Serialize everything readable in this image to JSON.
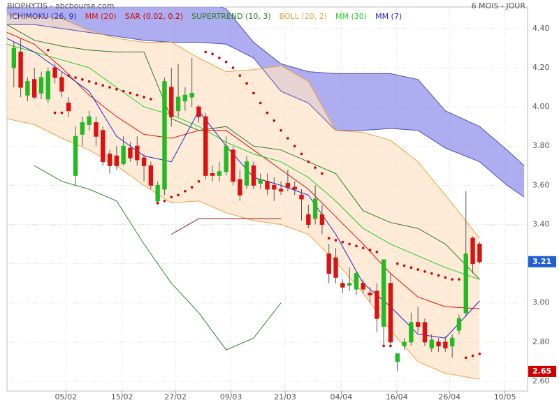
{
  "chart_data": {
    "type": "candlestick",
    "title": "BIOPHYTIS - abcbourse.com",
    "subtitle": "6 MOIS - JOUR",
    "legend": [
      {
        "name": "ICHIMOKU (26, 9)",
        "color": "#3030a0"
      },
      {
        "name": "MM (20)",
        "color": "#dd1111"
      },
      {
        "name": "SAR (0.02, 0.2)",
        "color": "#cc0000"
      },
      {
        "name": "SUPERTREND (10, 3)",
        "color": "#2a7a2a"
      },
      {
        "name": "BOLL (20, 2)",
        "color": "#f0a040"
      },
      {
        "name": "MM (30)",
        "color": "#22cc22"
      },
      {
        "name": "MM (7)",
        "color": "#2222cc"
      }
    ],
    "up_color": "#22bb22",
    "down_color": "#dd1111",
    "grid": true,
    "xlim": [
      -1,
      75
    ],
    "ylim": [
      2.55,
      4.51
    ],
    "xticks": [
      {
        "value": 7.6,
        "label": "05/02"
      },
      {
        "value": 15.8,
        "label": "15/02"
      },
      {
        "value": 23.6,
        "label": "27/02"
      },
      {
        "value": 31.7,
        "label": "09/03"
      },
      {
        "value": 39.6,
        "label": "21/03"
      },
      {
        "value": 47.8,
        "label": "04/04"
      },
      {
        "value": 55.9,
        "label": "16/04"
      },
      {
        "value": 63.6,
        "label": "26/04"
      },
      {
        "value": 71.7,
        "label": "10/05"
      }
    ],
    "yticks": [
      {
        "value": 2.6,
        "label": "2.60"
      },
      {
        "value": 2.8,
        "label": "2.80"
      },
      {
        "value": 3.0,
        "label": "3.00"
      },
      {
        "value": 3.2,
        "label": "3.20"
      },
      {
        "value": 3.4,
        "label": "3.40"
      },
      {
        "value": 3.6,
        "label": "3.60"
      },
      {
        "value": 3.8,
        "label": "3.80"
      },
      {
        "value": 4.0,
        "label": "4.00"
      },
      {
        "value": 4.2,
        "label": "4.20"
      },
      {
        "value": 4.4,
        "label": "4.40"
      }
    ],
    "candles": {
      "open": [
        4.2,
        4.28,
        4.06,
        4.14,
        4.07,
        4.04,
        4.2,
        4.15,
        4.02,
        3.65,
        3.86,
        3.91,
        3.92,
        3.88,
        3.76,
        3.75,
        3.71,
        3.79,
        3.8,
        3.74,
        3.7,
        3.52,
        3.58,
        4.1,
        3.98,
        4.03,
        4.05,
        4.0,
        3.95,
        3.66,
        3.65,
        3.67,
        3.78,
        3.63,
        3.6,
        3.7,
        3.61,
        3.62,
        3.6,
        3.58,
        3.61,
        3.59,
        3.55,
        3.45,
        3.43,
        3.45,
        3.25,
        3.23,
        3.1,
        3.09,
        3.07,
        3.1,
        3.05,
        3.06,
        2.88,
        3.1,
        2.7,
        2.78,
        2.8,
        2.9,
        2.9,
        2.77,
        2.8,
        2.8,
        2.78,
        2.86,
        2.95,
        3.33,
        3.3
      ],
      "high": [
        4.33,
        4.35,
        4.15,
        4.2,
        4.18,
        4.2,
        4.22,
        4.18,
        4.05,
        3.9,
        3.95,
        3.98,
        3.95,
        3.9,
        3.78,
        3.8,
        3.85,
        3.82,
        3.85,
        3.76,
        3.72,
        3.62,
        4.15,
        4.2,
        4.22,
        4.1,
        4.25,
        4.01,
        3.97,
        3.7,
        3.72,
        3.85,
        3.8,
        3.68,
        3.75,
        3.72,
        3.66,
        3.66,
        3.64,
        3.62,
        3.68,
        3.62,
        3.58,
        3.5,
        3.6,
        3.5,
        3.3,
        3.28,
        3.12,
        3.18,
        3.16,
        3.12,
        3.08,
        3.1,
        3.22,
        3.15,
        2.74,
        2.82,
        2.95,
        2.98,
        2.92,
        2.84,
        2.82,
        2.83,
        2.84,
        2.94,
        3.57,
        3.34,
        3.31
      ],
      "low": [
        4.1,
        4.05,
        4.03,
        4.04,
        4.04,
        4.02,
        4.12,
        4.05,
        3.95,
        3.6,
        3.8,
        3.88,
        3.8,
        3.7,
        3.66,
        3.68,
        3.7,
        3.72,
        3.7,
        3.62,
        3.58,
        3.5,
        3.55,
        3.9,
        3.95,
        3.98,
        4.0,
        3.92,
        3.63,
        3.62,
        3.62,
        3.65,
        3.6,
        3.52,
        3.58,
        3.58,
        3.58,
        3.55,
        3.52,
        3.55,
        3.57,
        3.55,
        3.42,
        3.38,
        3.4,
        3.35,
        3.1,
        3.1,
        3.05,
        3.06,
        3.04,
        3.05,
        3.0,
        2.85,
        2.78,
        2.78,
        2.65,
        2.76,
        2.78,
        2.85,
        2.78,
        2.75,
        2.75,
        2.75,
        2.72,
        2.84,
        2.93,
        3.15,
        3.2
      ],
      "close": [
        4.3,
        4.1,
        4.13,
        4.05,
        4.15,
        4.18,
        4.15,
        4.08,
        3.98,
        3.85,
        3.92,
        3.95,
        3.85,
        3.72,
        3.7,
        3.7,
        3.8,
        3.74,
        3.73,
        3.7,
        3.6,
        3.6,
        4.13,
        3.95,
        4.05,
        4.06,
        4.07,
        3.95,
        3.65,
        3.65,
        3.67,
        3.8,
        3.62,
        3.55,
        3.72,
        3.6,
        3.63,
        3.58,
        3.58,
        3.57,
        3.59,
        3.58,
        3.53,
        3.4,
        3.53,
        3.4,
        3.15,
        3.13,
        3.08,
        3.1,
        3.15,
        3.07,
        3.04,
        2.92,
        3.22,
        2.8,
        2.74,
        2.8,
        2.9,
        2.88,
        2.8,
        2.81,
        2.78,
        2.77,
        2.82,
        2.92,
        3.25,
        3.2,
        3.21
      ]
    },
    "indicators_x": [
      -1,
      3,
      7,
      11,
      15,
      19,
      23,
      27,
      31,
      35,
      39,
      43,
      47,
      51,
      55,
      59,
      63,
      68,
      72,
      74.5
    ],
    "bands": [
      {
        "line_color": "#5050c0",
        "fill": "#8a8ae8",
        "upper": [
          4.55,
          4.55,
          4.55,
          4.55,
          4.55,
          4.55,
          4.55,
          4.55,
          4.5,
          4.33,
          4.22,
          4.18,
          4.17,
          4.17,
          4.17,
          4.14,
          3.98,
          3.9,
          3.78,
          3.7
        ],
        "lower": [
          4.42,
          4.42,
          4.4,
          4.38,
          4.36,
          4.34,
          4.33,
          4.33,
          4.32,
          4.25,
          4.08,
          4.02,
          3.88,
          3.88,
          3.89,
          3.88,
          3.79,
          3.72,
          3.6,
          3.54
        ]
      },
      {
        "line_color": "#f0a040",
        "fill": "#fde2c6",
        "upper": [
          4.47,
          4.46,
          4.45,
          4.39,
          4.35,
          4.33,
          4.33,
          4.25,
          4.18,
          4.19,
          4.21,
          4.13,
          3.88,
          3.87,
          3.83,
          3.72,
          3.55,
          3.33,
          null,
          null
        ],
        "lower": [
          3.94,
          3.91,
          3.84,
          3.78,
          3.7,
          3.6,
          3.51,
          3.52,
          3.46,
          3.42,
          3.4,
          3.35,
          3.21,
          3.05,
          2.86,
          2.7,
          2.64,
          2.61,
          null,
          null
        ]
      }
    ],
    "lines": [
      {
        "color": "#dd1111",
        "values": [
          4.38,
          4.32,
          4.2,
          4.06,
          3.95,
          3.86,
          3.84,
          3.88,
          3.88,
          3.78,
          3.68,
          3.58,
          3.44,
          3.3,
          3.15,
          3.03,
          2.98,
          2.97,
          null,
          null
        ]
      },
      {
        "color": "#22cc22",
        "values": [
          4.32,
          4.28,
          4.24,
          4.2,
          4.1,
          4.0,
          3.96,
          3.9,
          3.82,
          3.76,
          3.72,
          3.64,
          3.52,
          3.38,
          3.3,
          3.24,
          3.18,
          3.12,
          null,
          null
        ]
      },
      {
        "color": "#2222cc",
        "values": [
          4.35,
          4.28,
          4.18,
          4.08,
          3.85,
          3.75,
          3.72,
          3.98,
          3.8,
          3.64,
          3.6,
          3.55,
          3.35,
          3.1,
          2.98,
          2.84,
          2.82,
          3.01,
          null,
          null
        ]
      },
      {
        "color": "#2a7a2a",
        "values": [
          4.42,
          4.34,
          4.31,
          4.29,
          4.28,
          4.28,
          3.94,
          3.88,
          3.9,
          3.8,
          3.78,
          3.72,
          3.66,
          3.47,
          3.41,
          3.38,
          3.3,
          3.12,
          null,
          null
        ]
      },
      {
        "color": "#2a8a2a",
        "values": [
          null,
          3.7,
          3.62,
          3.58,
          3.52,
          3.3,
          3.1,
          2.95,
          2.76,
          2.82,
          3.0,
          null,
          null,
          null,
          null,
          null,
          null,
          null,
          null,
          null
        ]
      },
      {
        "color": "#a01010",
        "values": [
          null,
          null,
          null,
          null,
          null,
          null,
          3.35,
          3.43,
          3.43,
          3.43,
          3.43,
          null,
          null,
          null,
          null,
          null,
          null,
          null,
          null,
          null
        ]
      }
    ],
    "sar": {
      "color": "#cc0000",
      "x": [
        5,
        6,
        7,
        8,
        9,
        10,
        11,
        12,
        13,
        14,
        15,
        16,
        17,
        18,
        19,
        20,
        21,
        22,
        23,
        24,
        25,
        26,
        27,
        28,
        29,
        30,
        31,
        32,
        33,
        34,
        35,
        36,
        37,
        38,
        39,
        40,
        41,
        42,
        43,
        44,
        45,
        46,
        47,
        48,
        49,
        50,
        51,
        52,
        53,
        54,
        55,
        56,
        57,
        58,
        59,
        60,
        61,
        62,
        63,
        64,
        65,
        66,
        67,
        68
      ],
      "values": [
        4.29,
        3.97,
        3.97,
        4.16,
        4.15,
        4.14,
        4.13,
        4.12,
        4.11,
        4.1,
        4.09,
        4.08,
        4.07,
        4.06,
        4.05,
        4.04,
        3.51,
        3.52,
        3.54,
        3.55,
        3.57,
        3.59,
        3.62,
        4.28,
        4.27,
        4.25,
        4.23,
        4.2,
        4.16,
        4.12,
        4.07,
        4.02,
        3.97,
        3.93,
        3.88,
        3.84,
        3.8,
        3.76,
        3.72,
        3.69,
        3.66,
        3.33,
        3.32,
        3.31,
        3.3,
        3.29,
        3.28,
        3.27,
        3.26,
        2.78,
        2.78,
        3.2,
        3.19,
        3.18,
        3.17,
        3.16,
        3.15,
        3.14,
        3.13,
        3.12,
        3.12,
        2.72,
        2.73,
        2.74
      ]
    },
    "price_tags": [
      {
        "value": 3.21,
        "color": "#1f5fd0"
      },
      {
        "value": 2.65,
        "color": "#d00000"
      }
    ]
  }
}
